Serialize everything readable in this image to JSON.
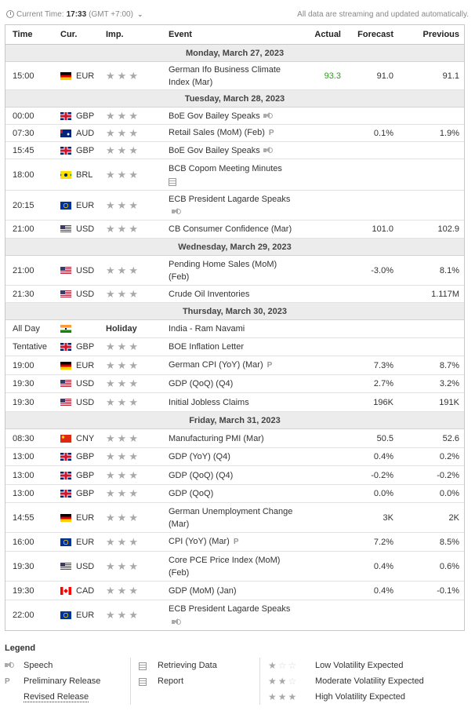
{
  "topbar": {
    "current_time_label": "Current Time:",
    "current_time": "17:33",
    "timezone": "(GMT +7:00)",
    "notice": "All data are streaming and updated automatically."
  },
  "columns": {
    "time": "Time",
    "cur": "Cur.",
    "imp": "Imp.",
    "event": "Event",
    "actual": "Actual",
    "forecast": "Forecast",
    "previous": "Previous"
  },
  "days": [
    {
      "date": "Monday, March 27, 2023",
      "events": [
        {
          "time": "15:00",
          "flag": "de",
          "cur": "EUR",
          "stars": 3,
          "event": "German Ifo Business Climate Index (Mar)",
          "actual": "93.3",
          "actual_color": "#2e9c1e",
          "forecast": "91.0",
          "previous": "91.1"
        }
      ]
    },
    {
      "date": "Tuesday, March 28, 2023",
      "events": [
        {
          "time": "00:00",
          "flag": "gb",
          "cur": "GBP",
          "stars": 3,
          "event": "BoE Gov Bailey Speaks",
          "icon": "speech-icon",
          "actual": "",
          "forecast": "",
          "previous": ""
        },
        {
          "time": "07:30",
          "flag": "au",
          "cur": "AUD",
          "stars": 3,
          "event": "Retail Sales (MoM) (Feb)",
          "icon": "preliminary-icon",
          "actual": "",
          "forecast": "0.1%",
          "previous": "1.9%"
        },
        {
          "time": "15:45",
          "flag": "gb",
          "cur": "GBP",
          "stars": 3,
          "event": "BoE Gov Bailey Speaks",
          "icon": "speech-icon",
          "actual": "",
          "forecast": "",
          "previous": ""
        },
        {
          "time": "18:00",
          "flag": "br",
          "cur": "BRL",
          "stars": 3,
          "event": "BCB Copom Meeting Minutes",
          "icon": "report-icon",
          "actual": "",
          "forecast": "",
          "previous": ""
        },
        {
          "time": "20:15",
          "flag": "eu",
          "cur": "EUR",
          "stars": 3,
          "event": "ECB President Lagarde Speaks",
          "icon": "speech-icon",
          "actual": "",
          "forecast": "",
          "previous": ""
        },
        {
          "time": "21:00",
          "flag": "us",
          "cur": "USD",
          "stars": 3,
          "event": "CB Consumer Confidence (Mar)",
          "actual": "",
          "forecast": "101.0",
          "previous": "102.9"
        }
      ]
    },
    {
      "date": "Wednesday, March 29, 2023",
      "events": [
        {
          "time": "21:00",
          "flag": "us",
          "cur": "USD",
          "stars": 3,
          "event": "Pending Home Sales (MoM) (Feb)",
          "actual": "",
          "forecast": "-3.0%",
          "previous": "8.1%"
        },
        {
          "time": "21:30",
          "flag": "us",
          "cur": "USD",
          "stars": 3,
          "event": "Crude Oil Inventories",
          "actual": "",
          "forecast": "",
          "previous": "1.117M"
        }
      ]
    },
    {
      "date": "Thursday, March 30, 2023",
      "events": [
        {
          "time": "All Day",
          "flag": "in",
          "cur": "",
          "holiday": "Holiday",
          "event": "India - Ram Navami",
          "actual": "",
          "forecast": "",
          "previous": ""
        },
        {
          "time": "Tentative",
          "flag": "gb",
          "cur": "GBP",
          "stars": 3,
          "event": "BOE Inflation Letter",
          "actual": "",
          "forecast": "",
          "previous": ""
        },
        {
          "time": "19:00",
          "flag": "de",
          "cur": "EUR",
          "stars": 3,
          "event": "German CPI (YoY) (Mar)",
          "icon": "preliminary-icon",
          "actual": "",
          "forecast": "7.3%",
          "previous": "8.7%"
        },
        {
          "time": "19:30",
          "flag": "us",
          "cur": "USD",
          "stars": 3,
          "event": "GDP (QoQ) (Q4)",
          "actual": "",
          "forecast": "2.7%",
          "previous": "3.2%"
        },
        {
          "time": "19:30",
          "flag": "us",
          "cur": "USD",
          "stars": 3,
          "event": "Initial Jobless Claims",
          "actual": "",
          "forecast": "196K",
          "previous": "191K"
        }
      ]
    },
    {
      "date": "Friday, March 31, 2023",
      "events": [
        {
          "time": "08:30",
          "flag": "cn",
          "cur": "CNY",
          "stars": 3,
          "event": "Manufacturing PMI (Mar)",
          "actual": "",
          "forecast": "50.5",
          "previous": "52.6"
        },
        {
          "time": "13:00",
          "flag": "gb",
          "cur": "GBP",
          "stars": 3,
          "event": "GDP (YoY) (Q4)",
          "actual": "",
          "forecast": "0.4%",
          "previous": "0.2%"
        },
        {
          "time": "13:00",
          "flag": "gb",
          "cur": "GBP",
          "stars": 3,
          "event": "GDP (QoQ) (Q4)",
          "actual": "",
          "forecast": "-0.2%",
          "previous": "-0.2%"
        },
        {
          "time": "13:00",
          "flag": "gb",
          "cur": "GBP",
          "stars": 3,
          "event": "GDP (QoQ)",
          "actual": "",
          "forecast": "0.0%",
          "previous": "0.0%"
        },
        {
          "time": "14:55",
          "flag": "de",
          "cur": "EUR",
          "stars": 3,
          "event": "German Unemployment Change (Mar)",
          "actual": "",
          "forecast": "3K",
          "previous": "2K"
        },
        {
          "time": "16:00",
          "flag": "eu",
          "cur": "EUR",
          "stars": 3,
          "event": "CPI (YoY) (Mar)",
          "icon": "preliminary-icon",
          "actual": "",
          "forecast": "7.2%",
          "previous": "8.5%"
        },
        {
          "time": "19:30",
          "flag": "us",
          "cur": "USD",
          "stars": 3,
          "event": "Core PCE Price Index (MoM) (Feb)",
          "actual": "",
          "forecast": "0.4%",
          "previous": "0.6%"
        },
        {
          "time": "19:30",
          "flag": "ca",
          "cur": "CAD",
          "stars": 3,
          "event": "GDP (MoM) (Jan)",
          "actual": "",
          "forecast": "0.4%",
          "previous": "-0.1%"
        },
        {
          "time": "22:00",
          "flag": "eu",
          "cur": "EUR",
          "stars": 3,
          "event": "ECB President Lagarde Speaks",
          "icon": "speech-icon",
          "actual": "",
          "forecast": "",
          "previous": ""
        }
      ]
    }
  ],
  "legend": {
    "title": "Legend",
    "speech": "Speech",
    "preliminary": "Preliminary Release",
    "preliminary_glyph": "P",
    "revised": "Revised Release",
    "retrieving": "Retrieving Data",
    "report": "Report",
    "low": "Low Volatility Expected",
    "moderate": "Moderate Volatility Expected",
    "high": "High Volatility Expected"
  }
}
